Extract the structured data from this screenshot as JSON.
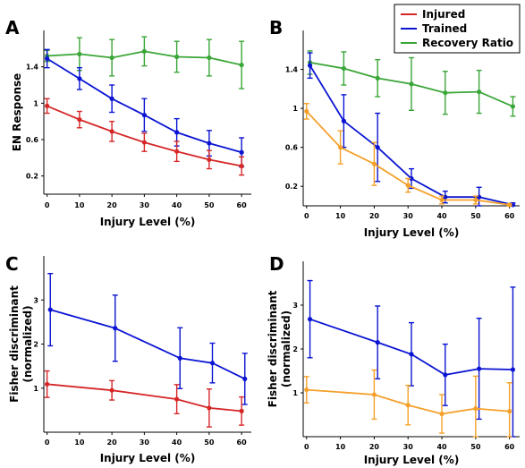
{
  "legend": {
    "items": [
      {
        "label": "Injured",
        "color": "#d62728"
      },
      {
        "label": "Trained",
        "color": "#0a14d2"
      },
      {
        "label": "Recovery Ratio",
        "color": "#3aa637"
      }
    ]
  },
  "colors": {
    "injured": "#d62728",
    "trained": "#0a14d2",
    "ratio": "#3aa637",
    "orange": "#f5a02a"
  },
  "chart_data": [
    {
      "panel": "A",
      "type": "line",
      "xlabel": "Injury Level (%)",
      "ylabel": "EN Response",
      "xlim": [
        -1,
        63
      ],
      "ylim": [
        0,
        1.8
      ],
      "xticks": [
        0,
        10,
        20,
        30,
        40,
        50,
        60
      ],
      "yticks": [
        0.2,
        0.6,
        1,
        1.4
      ],
      "ytick_labels": [
        "0.2",
        "0.6",
        "1",
        "1.4"
      ],
      "series": [
        {
          "name": "Recovery Ratio",
          "color": "#3aa637",
          "x": [
            0,
            10,
            20,
            30,
            40,
            50,
            60
          ],
          "y": [
            1.52,
            1.54,
            1.5,
            1.57,
            1.51,
            1.5,
            1.42
          ],
          "err": [
            0.06,
            0.18,
            0.2,
            0.16,
            0.17,
            0.2,
            0.26
          ]
        },
        {
          "name": "Trained",
          "color": "#0a14d2",
          "x": [
            0,
            10,
            20,
            30,
            40,
            50,
            60
          ],
          "y": [
            1.49,
            1.27,
            1.05,
            0.87,
            0.68,
            0.56,
            0.46
          ],
          "err": [
            0.1,
            0.12,
            0.15,
            0.18,
            0.15,
            0.14,
            0.16
          ]
        },
        {
          "name": "Injured",
          "color": "#d62728",
          "x": [
            0,
            10,
            20,
            30,
            40,
            50,
            60
          ],
          "y": [
            0.97,
            0.82,
            0.69,
            0.57,
            0.47,
            0.38,
            0.31
          ],
          "err": [
            0.08,
            0.09,
            0.11,
            0.1,
            0.11,
            0.1,
            0.1
          ]
        }
      ]
    },
    {
      "panel": "B",
      "type": "line",
      "xlabel": "Injury Level (%)",
      "ylabel": "",
      "xlim": [
        -1,
        63
      ],
      "ylim": [
        0,
        1.8
      ],
      "xticks": [
        0,
        10,
        20,
        30,
        40,
        50,
        60
      ],
      "yticks": [
        0.2,
        0.6,
        1,
        1.4
      ],
      "ytick_labels": [
        "0.2",
        "0.6",
        "1",
        "1.4"
      ],
      "series": [
        {
          "name": "Recovery Ratio",
          "color": "#3aa637",
          "x": [
            1,
            11,
            21,
            31,
            41,
            51,
            61
          ],
          "y": [
            1.47,
            1.41,
            1.31,
            1.25,
            1.16,
            1.17,
            1.02
          ],
          "err": [
            0.12,
            0.17,
            0.19,
            0.27,
            0.22,
            0.22,
            0.1
          ]
        },
        {
          "name": "Trained",
          "color": "#0a14d2",
          "x": [
            1,
            11,
            21,
            31,
            41,
            51,
            61
          ],
          "y": [
            1.44,
            0.87,
            0.6,
            0.28,
            0.09,
            0.09,
            0.01
          ],
          "err": [
            0.13,
            0.27,
            0.35,
            0.1,
            0.06,
            0.1,
            0.02
          ]
        },
        {
          "name": "Injured",
          "color": "#f5a02a",
          "x": [
            0,
            10,
            20,
            30,
            40,
            50,
            60
          ],
          "y": [
            0.97,
            0.6,
            0.43,
            0.21,
            0.06,
            0.06,
            0.01
          ],
          "err": [
            0.08,
            0.17,
            0.22,
            0.07,
            0.04,
            0.04,
            0.01
          ]
        }
      ]
    },
    {
      "panel": "C",
      "type": "line",
      "xlabel": "Injury Level (%)",
      "ylabel": "Fisher discriminant\n(normalized)",
      "xlim": [
        -1,
        63
      ],
      "ylim": [
        0,
        4
      ],
      "xticks": [
        0,
        10,
        20,
        30,
        40,
        50,
        60
      ],
      "yticks": [
        1,
        2,
        3
      ],
      "ytick_labels": [
        "1",
        "2",
        "3"
      ],
      "series": [
        {
          "name": "Trained",
          "color": "#0a14d2",
          "x": [
            1,
            21,
            41,
            51,
            61
          ],
          "y": [
            2.78,
            2.36,
            1.68,
            1.57,
            1.21
          ],
          "err": [
            0.82,
            0.75,
            0.69,
            0.45,
            0.58
          ]
        },
        {
          "name": "Injured",
          "color": "#d62728",
          "x": [
            0,
            20,
            40,
            50,
            60
          ],
          "y": [
            1.09,
            0.95,
            0.75,
            0.55,
            0.48
          ],
          "err": [
            0.3,
            0.22,
            0.33,
            0.43,
            0.32
          ]
        }
      ]
    },
    {
      "panel": "D",
      "type": "line",
      "xlabel": "Injury Level (%)",
      "ylabel": "Fisher discriminant\n(normalized)",
      "xlim": [
        -1,
        63
      ],
      "ylim": [
        0,
        4
      ],
      "xticks": [
        0,
        10,
        20,
        30,
        40,
        50,
        60
      ],
      "yticks": [
        1,
        2,
        3
      ],
      "ytick_labels": [
        "1",
        "2",
        "3"
      ],
      "series": [
        {
          "name": "Trained",
          "color": "#0a14d2",
          "x": [
            1,
            21,
            31,
            41,
            51,
            61
          ],
          "y": [
            2.68,
            2.15,
            1.88,
            1.41,
            1.55,
            1.53
          ],
          "err": [
            0.88,
            0.83,
            0.72,
            0.7,
            1.15,
            1.88
          ]
        },
        {
          "name": "Injured",
          "color": "#f5a02a",
          "x": [
            0,
            20,
            30,
            40,
            50,
            60
          ],
          "y": [
            1.07,
            0.96,
            0.72,
            0.52,
            0.64,
            0.58
          ],
          "err": [
            0.3,
            0.56,
            0.45,
            0.44,
            0.74,
            0.65
          ]
        }
      ]
    }
  ]
}
